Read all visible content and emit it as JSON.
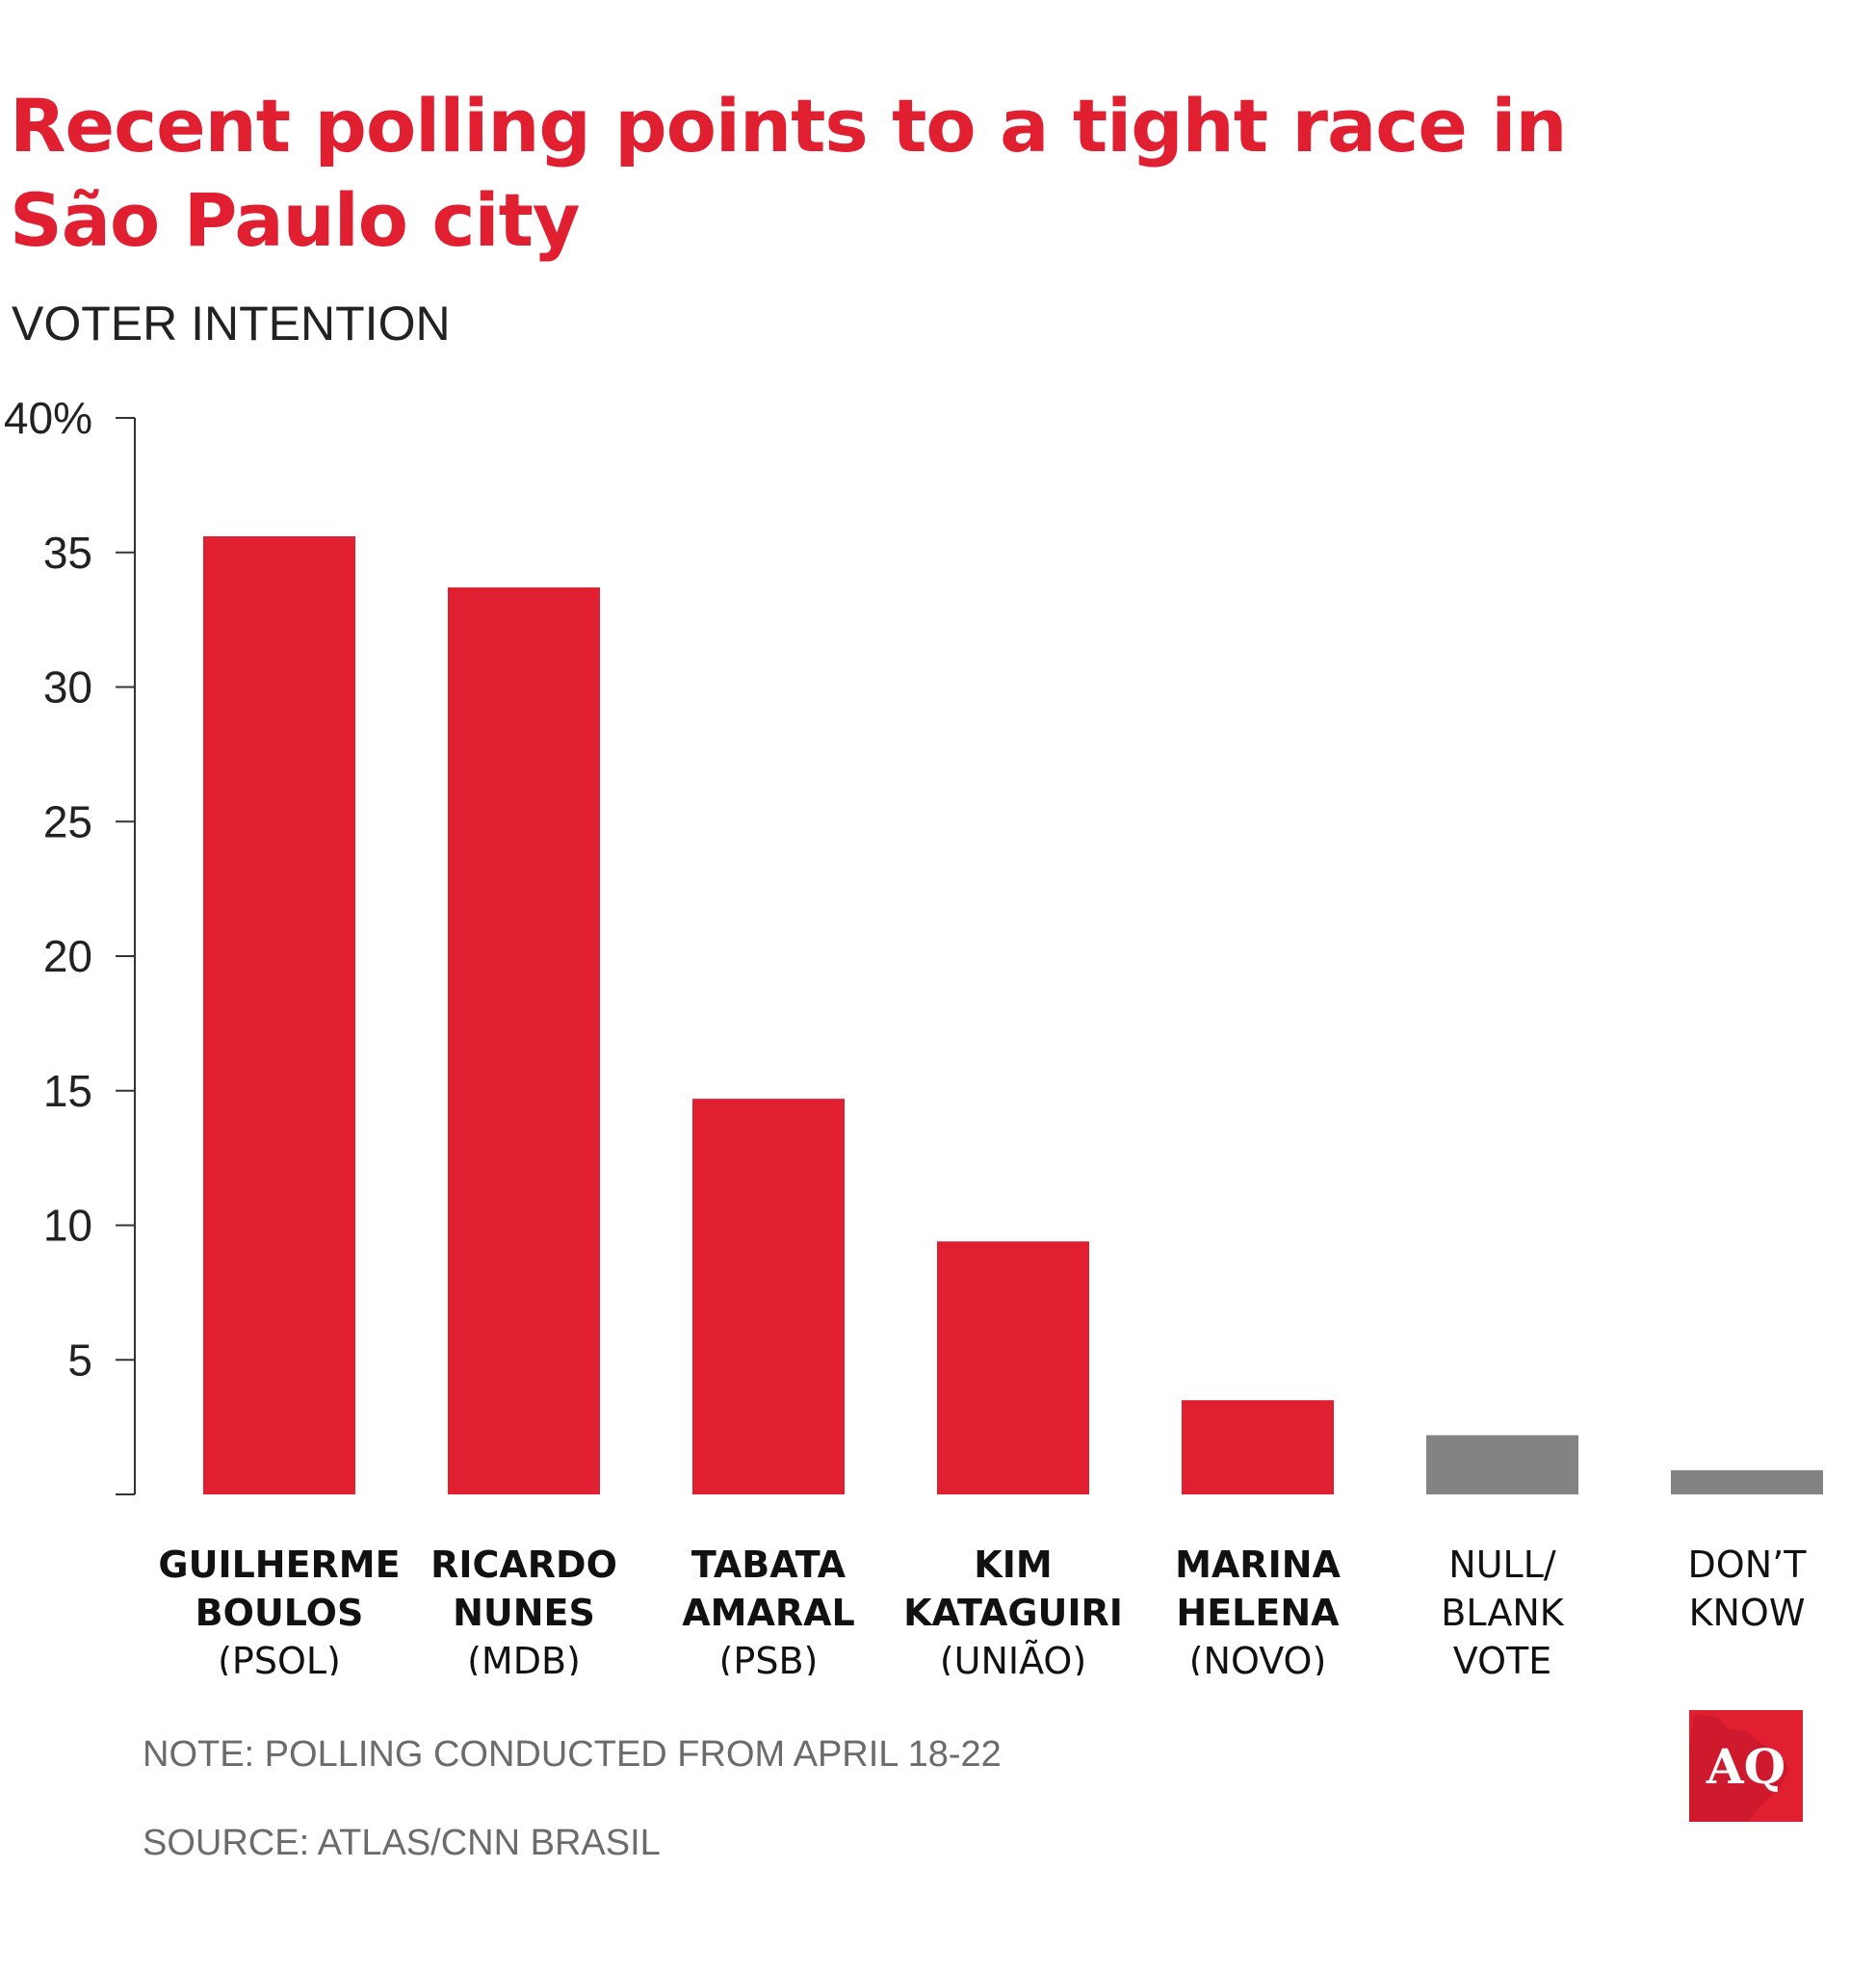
{
  "header": {
    "title": "Recent polling points to a tight race in São Paulo city",
    "subtitle": "VOTER INTENTION"
  },
  "chart_data": {
    "type": "bar",
    "title": "Recent polling points to a tight race in São Paulo city",
    "ylabel": "VOTER INTENTION",
    "xlabel": "",
    "ylim": [
      0,
      40
    ],
    "y_ticks": [
      "40%",
      "35",
      "30",
      "25",
      "20",
      "15",
      "10",
      "5"
    ],
    "y_tick_values": [
      40,
      35,
      30,
      25,
      20,
      15,
      10,
      5
    ],
    "grid": false,
    "categories": [
      {
        "line1": "GUILHERME",
        "line2": "BOULOS",
        "line3": "(PSOL)",
        "bold_lines": 2
      },
      {
        "line1": "RICARDO",
        "line2": "NUNES",
        "line3": "(MDB)",
        "bold_lines": 2
      },
      {
        "line1": "TABATA",
        "line2": "AMARAL",
        "line3": "(PSB)",
        "bold_lines": 2
      },
      {
        "line1": "KIM",
        "line2": "KATAGUIRI",
        "line3": "(UNIÃO)",
        "bold_lines": 2
      },
      {
        "line1": "MARINA",
        "line2": "HELENA",
        "line3": "(NOVO)",
        "bold_lines": 2
      },
      {
        "line1": "NULL/",
        "line2": "BLANK",
        "line3": "VOTE",
        "bold_lines": 0
      },
      {
        "line1": "DON’T",
        "line2": "KNOW",
        "line3": "",
        "bold_lines": 0
      }
    ],
    "values": [
      35.6,
      33.7,
      14.7,
      9.4,
      3.5,
      2.2,
      0.9
    ],
    "bar_colors": [
      "#e01f31",
      "#e01f31",
      "#e01f31",
      "#e01f31",
      "#e01f31",
      "#838383",
      "#838383"
    ]
  },
  "footer": {
    "note": "NOTE: POLLING CONDUCTED FROM APRIL 18-22",
    "source": "SOURCE: ATLAS/CNN BRASIL"
  },
  "logo": {
    "text": "AQ",
    "background": "#e01f31"
  }
}
